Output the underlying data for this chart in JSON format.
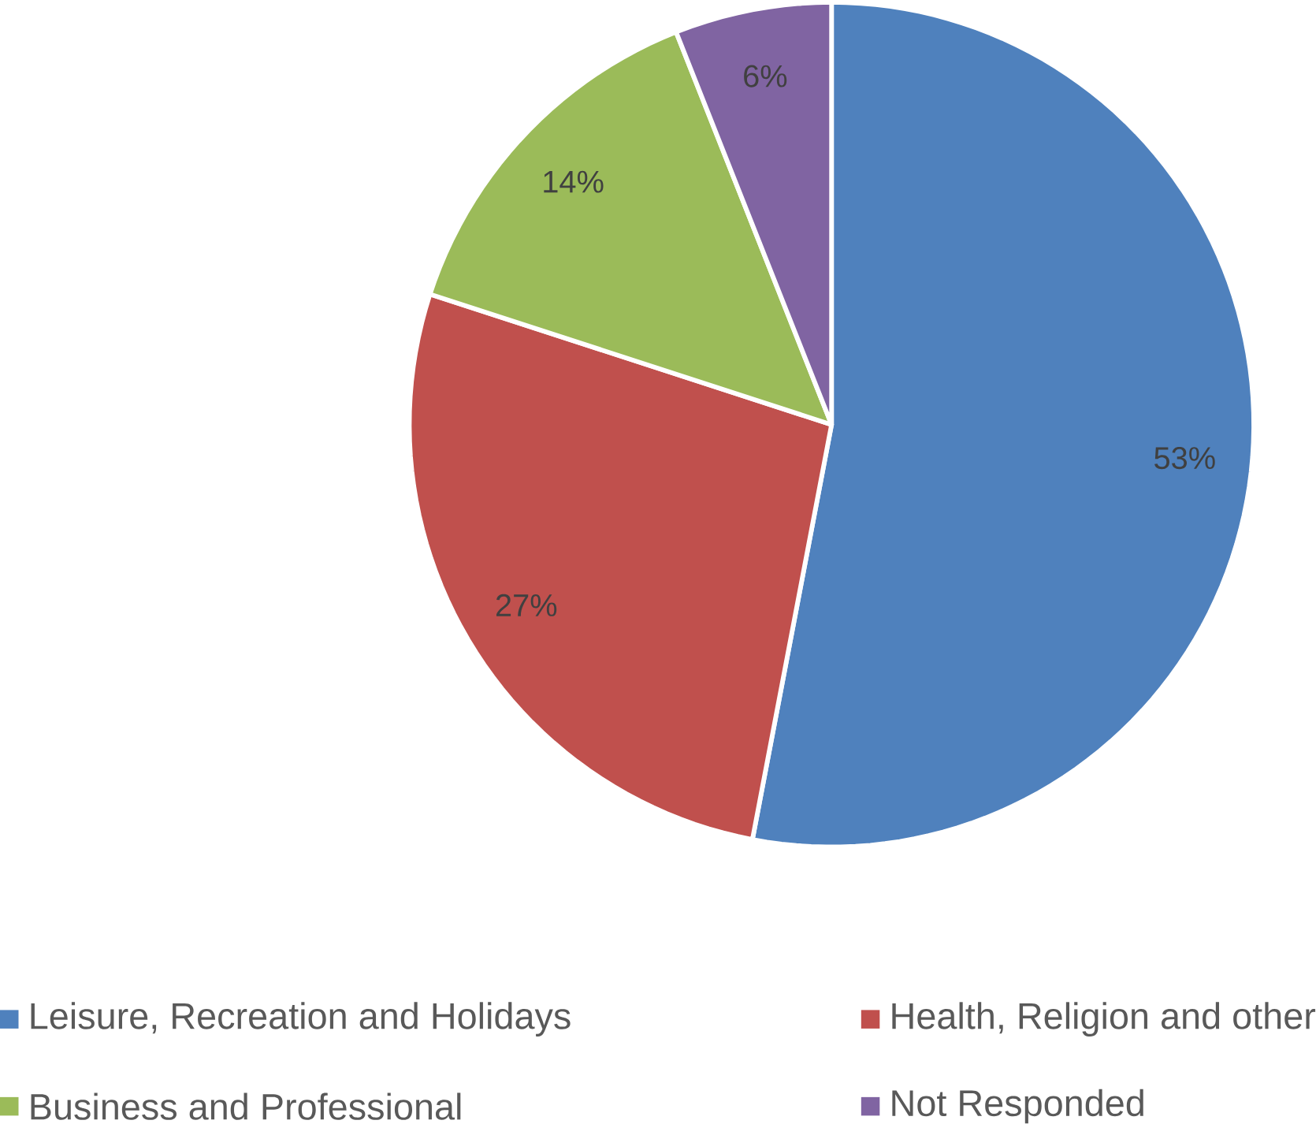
{
  "chart_data": {
    "type": "pie",
    "categories": [
      "Leisure, Recreation and Holidays",
      "Health, Religion and other",
      "Business and Professional",
      "Not Responded"
    ],
    "values": [
      53,
      27,
      14,
      6
    ],
    "value_labels": [
      "53%",
      "27%",
      "14%",
      "6%"
    ],
    "colors": [
      "#4f81bd",
      "#c0504d",
      "#9bbb59",
      "#8064a2"
    ],
    "legend": "bottom"
  }
}
